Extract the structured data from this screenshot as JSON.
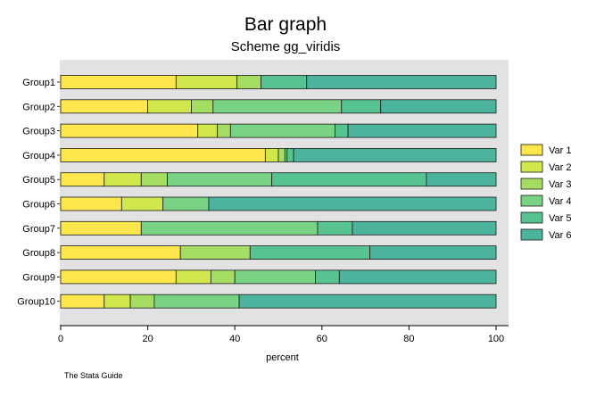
{
  "chart_data": {
    "type": "bar",
    "orientation": "horizontal",
    "stacked": true,
    "title": "Bar graph",
    "subtitle": "Scheme gg_viridis",
    "xlabel": "percent",
    "ylabel": "",
    "note": "The Stata Guide",
    "xlim": [
      0,
      100
    ],
    "xticks": [
      "0",
      "20",
      "40",
      "60",
      "80",
      "100"
    ],
    "grid": false,
    "legend_position": "right",
    "categories": [
      "Group1",
      "Group2",
      "Group3",
      "Group4",
      "Group5",
      "Group6",
      "Group7",
      "Group8",
      "Group9",
      "Group10"
    ],
    "series": [
      {
        "name": "Var 1",
        "color": "#FDE74C",
        "values": [
          26.5,
          20.0,
          31.5,
          47.0,
          10.0,
          14.0,
          18.5,
          27.5,
          26.5,
          10.0
        ]
      },
      {
        "name": "Var 2",
        "color": "#D2E64E",
        "values": [
          14.0,
          10.0,
          4.5,
          3.0,
          8.5,
          9.5,
          0.0,
          0.0,
          8.0,
          6.0
        ]
      },
      {
        "name": "Var 3",
        "color": "#A5DC62",
        "values": [
          5.5,
          5.0,
          3.0,
          1.5,
          6.0,
          0.0,
          0.0,
          16.0,
          5.5,
          5.5
        ]
      },
      {
        "name": "Var 4",
        "color": "#7AD284",
        "values": [
          0.0,
          29.5,
          24.0,
          0.5,
          24.0,
          10.5,
          40.5,
          0.0,
          18.5,
          19.5
        ]
      },
      {
        "name": "Var 5",
        "color": "#57C390",
        "values": [
          10.5,
          9.0,
          3.0,
          1.5,
          35.5,
          0.0,
          8.0,
          27.5,
          5.5,
          0.0
        ]
      },
      {
        "name": "Var 6",
        "color": "#4CB39C",
        "values": [
          43.5,
          26.5,
          34.0,
          46.5,
          16.0,
          66.0,
          33.0,
          29.0,
          36.0,
          59.0
        ]
      }
    ]
  }
}
